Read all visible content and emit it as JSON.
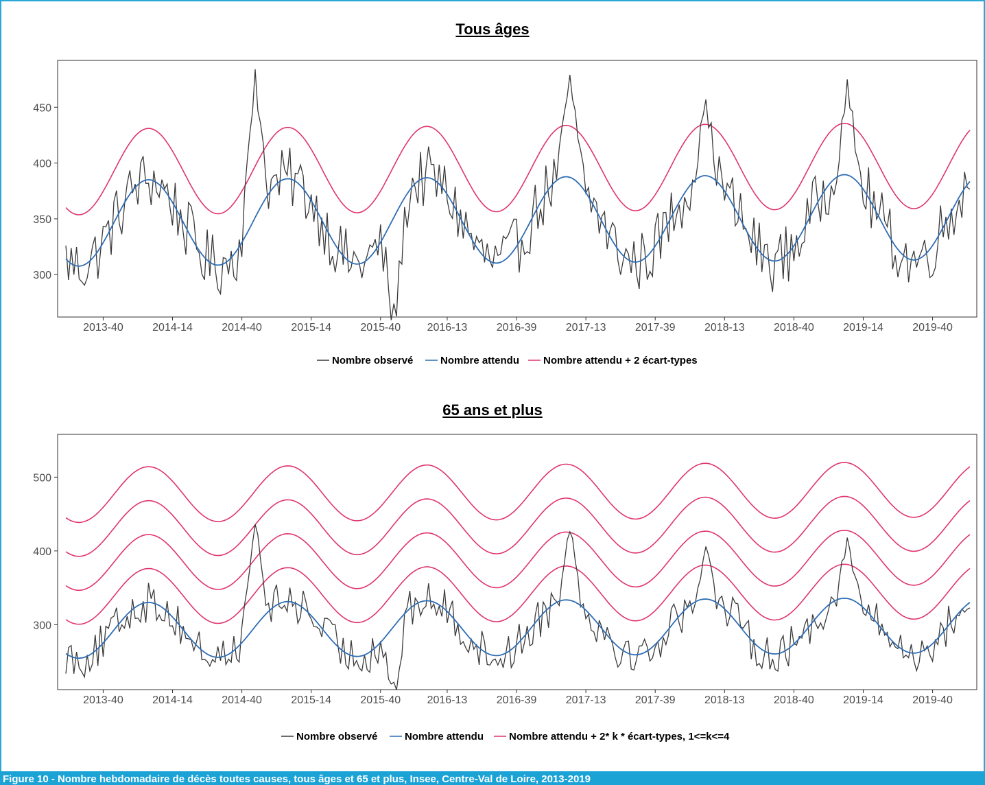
{
  "caption": "Figure 10 - Nombre hebdomadaire de décès toutes causes, tous âges et 65 et plus, Insee, Centre-Val de Loire, 2013-2019",
  "colors": {
    "observed": "#3a3a3a",
    "expected": "#2e6db4",
    "threshold": "#e0336f",
    "frame": "#29a8d8"
  },
  "chart_data": [
    {
      "type": "line",
      "title": "Tous âges",
      "x_tick_labels": [
        "2013-40",
        "2014-14",
        "2014-40",
        "2015-14",
        "2015-40",
        "2016-13",
        "2016-39",
        "2017-13",
        "2017-39",
        "2018-13",
        "2018-40",
        "2019-14",
        "2019-40"
      ],
      "x_tick_index": [
        14,
        40,
        66,
        92,
        118,
        143,
        169,
        195,
        221,
        247,
        273,
        299,
        325
      ],
      "weeks_count": 340,
      "ylim": [
        262,
        492
      ],
      "yticks": [
        300,
        350,
        400,
        450
      ],
      "legend": [
        "Nombre observé",
        "Nombre attendu",
        "Nombre attendu  + 2 écart-types"
      ],
      "expected_model": {
        "base": 346,
        "trend_per_week": 0.0175,
        "amplitude": 38.5,
        "period_weeks": 52.18,
        "peak_week": 31,
        "sd": 23
      },
      "threshold_multipliers": [
        2
      ],
      "observed_peaks": [
        {
          "week": 71,
          "value": 484
        },
        {
          "week": 123,
          "value": 274
        },
        {
          "week": 189,
          "value": 479
        },
        {
          "week": 240,
          "value": 457
        },
        {
          "week": 293,
          "value": 475
        }
      ]
    },
    {
      "type": "line",
      "title": "65 ans et plus",
      "x_tick_labels": [
        "2013-40",
        "2014-14",
        "2014-40",
        "2015-14",
        "2015-40",
        "2016-13",
        "2016-39",
        "2017-13",
        "2017-39",
        "2018-13",
        "2018-40",
        "2019-14",
        "2019-40"
      ],
      "x_tick_index": [
        14,
        40,
        66,
        92,
        118,
        143,
        169,
        195,
        221,
        247,
        273,
        299,
        325
      ],
      "weeks_count": 340,
      "ylim": [
        212,
        558
      ],
      "yticks": [
        300,
        400,
        500
      ],
      "legend": [
        "Nombre observé",
        "Nombre attendu",
        "Nombre attendu + 2* k * écart-types, 1<=k<=4"
      ],
      "expected_model": {
        "base": 292,
        "trend_per_week": 0.022,
        "amplitude": 37.5,
        "period_weeks": 52.18,
        "peak_week": 31,
        "sd": 23
      },
      "threshold_multipliers": [
        2,
        4,
        6,
        8
      ],
      "observed_peaks": [
        {
          "week": 71,
          "value": 436
        },
        {
          "week": 123,
          "value": 222
        },
        {
          "week": 189,
          "value": 426
        },
        {
          "week": 240,
          "value": 406
        },
        {
          "week": 293,
          "value": 418
        }
      ]
    }
  ]
}
